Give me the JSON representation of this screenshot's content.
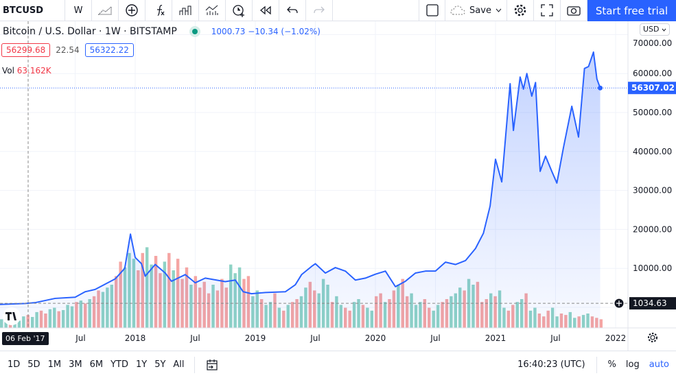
{
  "toolbar": {
    "symbol": "BTCUSD",
    "interval": "W",
    "save": "Save",
    "trial": "Start free trial",
    "icons": [
      "bar-style-icon",
      "compare-plus-icon",
      "indicators-fx-icon",
      "financials-icon",
      "ideas-icon",
      "alert-icon",
      "replay-icon",
      "undo-icon",
      "redo-icon"
    ]
  },
  "legend": {
    "title": "Bitcoin / U.S. Dollar · 1W · BITSTAMP",
    "change": "1000.73 −10.34 (−1.02%)",
    "bid": "56299.68",
    "spread": "22.54",
    "ask": "56322.22",
    "vol_label": "Vol",
    "vol_value": "63.162K"
  },
  "currency": "USD",
  "chart_data": {
    "type": "area",
    "y_ticks": [
      "60000.00",
      "50000.00",
      "40000.00",
      "30000.00",
      "20000.00",
      "10000.00"
    ],
    "y_top_label": "70000.00",
    "x_ticks": [
      "Jul",
      "2018",
      "Jul",
      "2019",
      "Jul",
      "2020",
      "Jul",
      "2021",
      "Jul",
      "2022"
    ],
    "last_price": "56307.02",
    "crosshair_price": "1034.63",
    "crosshair_date": "06 Feb '17",
    "colors": {
      "line": "#2962ff",
      "up": "#8fd3c5",
      "down": "#f5a5a3",
      "last": "#2962ff"
    },
    "series": [
      [
        "2016-11",
        700
      ],
      [
        "2017-02",
        1000
      ],
      [
        "2017-03",
        1200
      ],
      [
        "2017-05",
        2300
      ],
      [
        "2017-07",
        2600
      ],
      [
        "2017-08",
        4000
      ],
      [
        "2017-09",
        4600
      ],
      [
        "2017-11",
        7300
      ],
      [
        "2017-11-30",
        10000
      ],
      [
        "2017-12-17",
        18800
      ],
      [
        "2018-01",
        12800
      ],
      [
        "2018-01-20",
        11200
      ],
      [
        "2018-02",
        8000
      ],
      [
        "2018-03",
        11000
      ],
      [
        "2018-04",
        8800
      ],
      [
        "2018-04-20",
        6700
      ],
      [
        "2018-06",
        8400
      ],
      [
        "2018-07",
        6300
      ],
      [
        "2018-08",
        7500
      ],
      [
        "2018-10",
        6600
      ],
      [
        "2018-11",
        7000
      ],
      [
        "2018-11-25",
        4000
      ],
      [
        "2018-12-20",
        3500
      ],
      [
        "2019-02",
        3800
      ],
      [
        "2019-04",
        4000
      ],
      [
        "2019-05",
        5800
      ],
      [
        "2019-05-20",
        8400
      ],
      [
        "2019-06-20",
        10500
      ],
      [
        "2019-07",
        11200
      ],
      [
        "2019-08",
        8800
      ],
      [
        "2019-09",
        10200
      ],
      [
        "2019-10",
        9300
      ],
      [
        "2019-11",
        7000
      ],
      [
        "2019-12",
        7500
      ],
      [
        "2020-01",
        8500
      ],
      [
        "2020-02",
        9300
      ],
      [
        "2020-03",
        5300
      ],
      [
        "2020-04",
        6700
      ],
      [
        "2020-05",
        8800
      ],
      [
        "2020-06",
        9300
      ],
      [
        "2020-07",
        9300
      ],
      [
        "2020-08",
        11600
      ],
      [
        "2020-09",
        11000
      ],
      [
        "2020-10",
        12000
      ],
      [
        "2020-11",
        15100
      ],
      [
        "2020-11-25",
        19000
      ],
      [
        "2020-12-15",
        26000
      ],
      [
        "2021-01",
        38000
      ],
      [
        "2021-01-20",
        32200
      ],
      [
        "2021-02-15",
        57400
      ],
      [
        "2021-02-25",
        45400
      ],
      [
        "2021-03-15",
        59100
      ],
      [
        "2021-03-25",
        56000
      ],
      [
        "2021-04-05",
        60000
      ],
      [
        "2021-04-20",
        54200
      ],
      [
        "2021-05",
        57700
      ],
      [
        "2021-05-15",
        34900
      ],
      [
        "2021-06",
        38800
      ],
      [
        "2021-06-20",
        34900
      ],
      [
        "2021-07-05",
        31900
      ],
      [
        "2021-07-25",
        41000
      ],
      [
        "2021-08-20",
        51600
      ],
      [
        "2021-09-10",
        43700
      ],
      [
        "2021-09-28",
        61300
      ],
      [
        "2021-10-10",
        61800
      ],
      [
        "2021-10-25",
        65500
      ],
      [
        "2021-11-05",
        58600
      ],
      [
        "2021-11-15",
        56300
      ]
    ],
    "volume_k": [
      30,
      20,
      28,
      35,
      25,
      40,
      45,
      38,
      55,
      60,
      50,
      65,
      70,
      58,
      62,
      80,
      75,
      90,
      95,
      85,
      100,
      110,
      130,
      125,
      140,
      150,
      180,
      230,
      210,
      260,
      240,
      200,
      260,
      280,
      220,
      250,
      190,
      230,
      260,
      200,
      240,
      170,
      210,
      150,
      180,
      140,
      160,
      120,
      150,
      130,
      170,
      140,
      220,
      190,
      210,
      170,
      180,
      110,
      130,
      100,
      80,
      90,
      120,
      70,
      60,
      80,
      90,
      100,
      110,
      140,
      160,
      130,
      120,
      170,
      150,
      90,
      110,
      80,
      70,
      60,
      90,
      100,
      80,
      70,
      60,
      110,
      120,
      90,
      100,
      130,
      150,
      170,
      110,
      120,
      80,
      90,
      100,
      70,
      60,
      80,
      90,
      100,
      110,
      120,
      140,
      130,
      170,
      150,
      160,
      90,
      100,
      120,
      110,
      130,
      70,
      60,
      80,
      90,
      100,
      120,
      60,
      70,
      50,
      40,
      60,
      70,
      40,
      50,
      45,
      55,
      35,
      40,
      45,
      50,
      40,
      35,
      30
    ],
    "volume_dir": "uuduuuduudduuduuudududduuudduuudduuddududddudddduddduuudduuduudududduudduuuduudduuduudduddudduuudduudduuuduuddduduudduuduuddduudduuduuddduuddd"
  },
  "timebar": {
    "ranges": [
      "1D",
      "5D",
      "1M",
      "3M",
      "6M",
      "YTD",
      "1Y",
      "5Y",
      "All"
    ],
    "clock": "16:40:23 (UTC)",
    "percent": "%",
    "log": "log",
    "auto": "auto"
  }
}
